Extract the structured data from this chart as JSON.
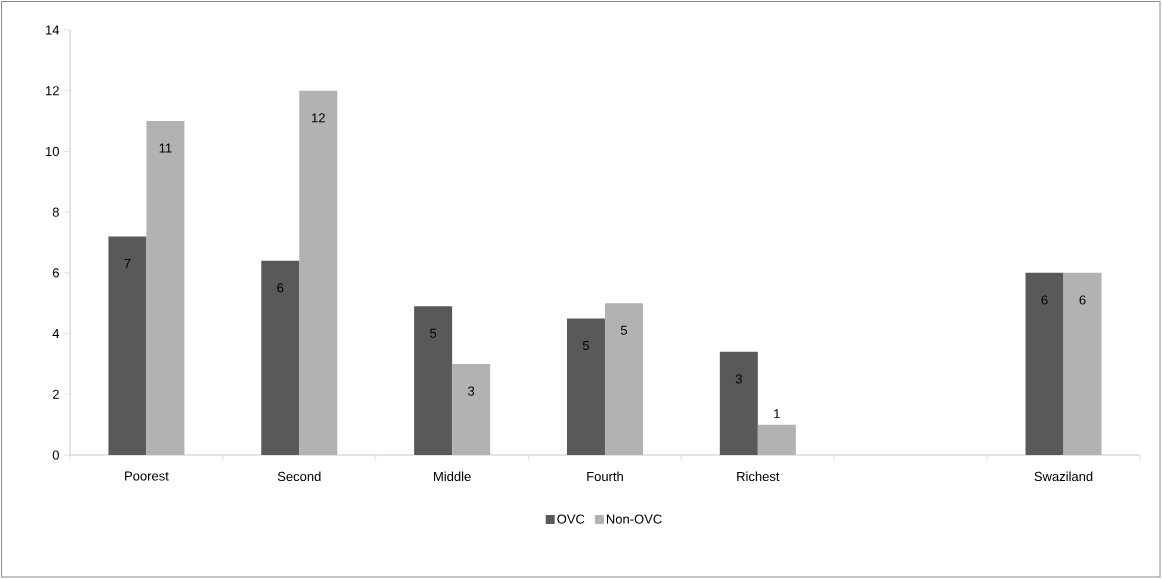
{
  "chart_data": {
    "type": "bar",
    "categories": [
      "Poorest",
      "Second",
      "Middle",
      "Fourth",
      "Richest",
      null,
      "Swaziland"
    ],
    "series": [
      {
        "name": "OVC",
        "color": "#595959",
        "values": [
          7.2,
          6.4,
          4.9,
          4.5,
          3.4,
          null,
          6.0
        ],
        "value_labels": [
          "7",
          "6",
          "5",
          "5",
          "3",
          null,
          "6"
        ]
      },
      {
        "name": "Non-OVC",
        "color": "#b2b2b2",
        "values": [
          11,
          12,
          3,
          5,
          1,
          null,
          6
        ],
        "value_labels": [
          "11",
          "12",
          "3",
          "5",
          "1",
          null,
          "6"
        ]
      }
    ],
    "ylim": [
      0,
      14
    ],
    "yticks": [
      0,
      2,
      4,
      6,
      8,
      10,
      12,
      14
    ],
    "legend": "bottom"
  }
}
